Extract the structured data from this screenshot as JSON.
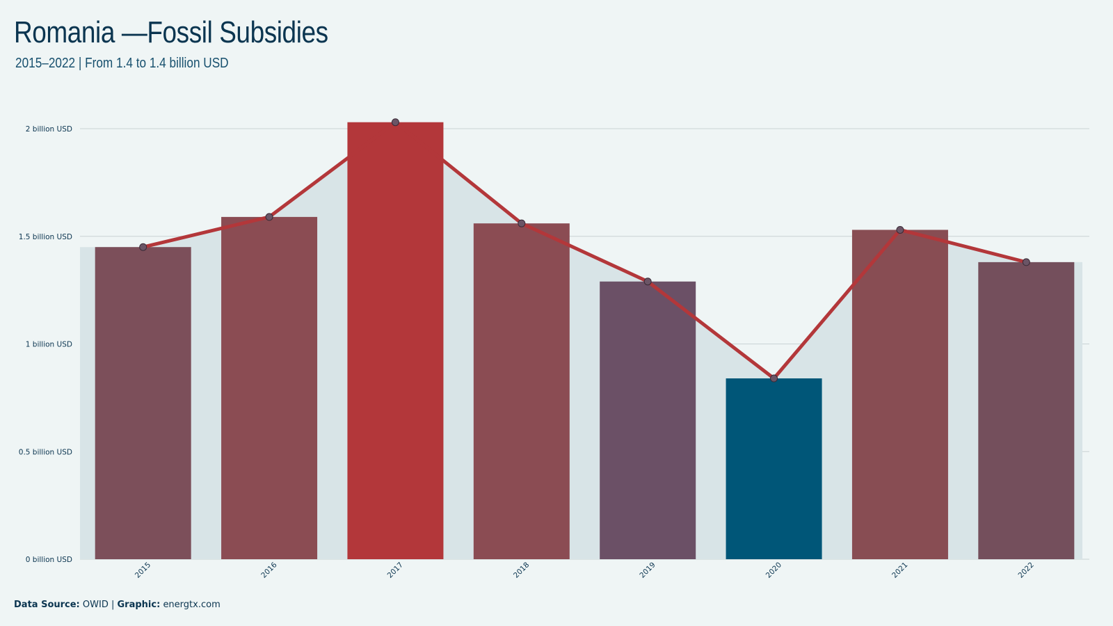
{
  "header": {
    "title": "Romania —Fossil Subsidies",
    "subtitle": "2015–2022 | From 1.4 to 1.4 billion USD"
  },
  "footer": {
    "source_label": "Data Source:",
    "source_value": "OWID",
    "separator": "|",
    "graphic_label": "Graphic:",
    "graphic_value": "energtx.com"
  },
  "colors": {
    "background": "#eff5f5",
    "area_fill": "#d8e4e7",
    "line": "#b3373a",
    "point_fill": "#6b5566",
    "text": "#0b3550",
    "grid": "#c9d2d4"
  },
  "chart_data": {
    "type": "bar",
    "categories": [
      "2015",
      "2016",
      "2017",
      "2018",
      "2019",
      "2020",
      "2021",
      "2022"
    ],
    "values": [
      1.45,
      1.59,
      2.03,
      1.56,
      1.29,
      0.84,
      1.53,
      1.38
    ],
    "bar_colors": [
      "#7c4f5a",
      "#8b4c53",
      "#b3373a",
      "#8b4c53",
      "#6b5066",
      "#005678",
      "#884d53",
      "#744f5c"
    ],
    "overlay": {
      "type": "line",
      "values": [
        1.45,
        1.59,
        2.03,
        1.56,
        1.29,
        0.84,
        1.53,
        1.38
      ],
      "area_fill": true,
      "markers": true
    },
    "yticks": [
      0,
      0.5,
      1,
      1.5,
      2
    ],
    "ytick_labels": [
      "0 billion USD",
      "0.5 billion USD",
      "1 billion USD",
      "1.5 billion USD",
      "2 billion USD"
    ],
    "ylim": [
      0,
      2.1
    ],
    "grid": true,
    "xlabel": "",
    "ylabel": "",
    "legend": "none"
  }
}
